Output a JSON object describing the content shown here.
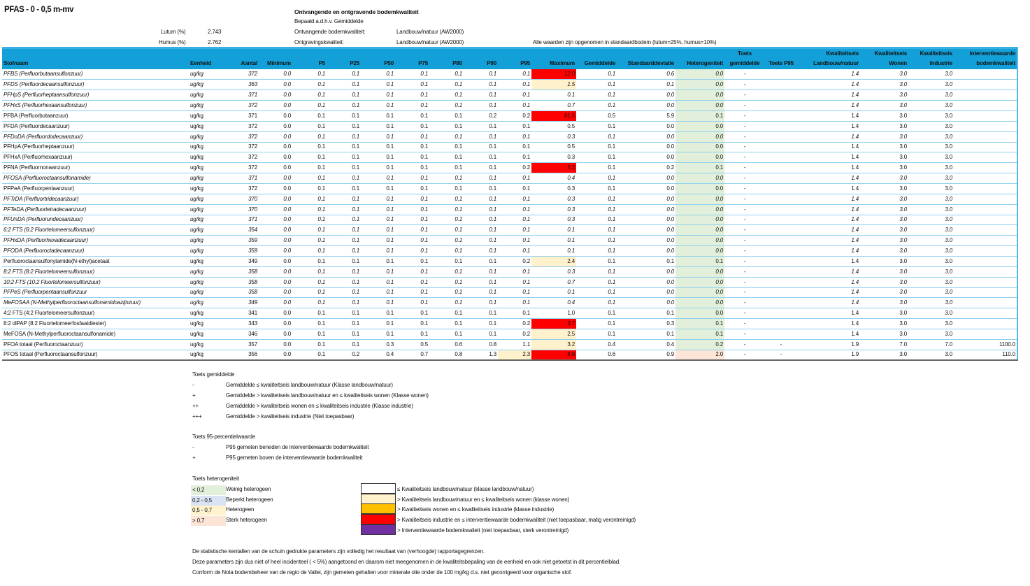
{
  "title": "PFAS - 0 - 0,5 m-mv",
  "info": {
    "lutum_label": "Lutum (%)",
    "lutum_value": "2.743",
    "humus_label": "Humus (%)",
    "humus_value": "2.762",
    "heading": "Ontvangende en ontgravende bodemkwaliteit",
    "basis": "Bepaald a.d.h.v. Gemiddelde",
    "ontvangend_label": "Ontvangende bodemkwaliteit:",
    "ontvangend_value": "Landbouw/natuur (AW2000)",
    "ontgraving_label": "Ontgravingskwaliteit:",
    "ontgraving_value": "Landbouw/natuur (AW2000)",
    "note": "Alle waarden zijn opgenomen in standaardbodem (lutum=25%, humus=10%)"
  },
  "table": {
    "headers": [
      [
        "",
        "Stofnaam"
      ],
      [
        "",
        "Eenheid"
      ],
      [
        "",
        "Aantal"
      ],
      [
        "",
        "Minimum"
      ],
      [
        "",
        "P5"
      ],
      [
        "",
        "P25"
      ],
      [
        "",
        "P50"
      ],
      [
        "",
        "P75"
      ],
      [
        "",
        "P80"
      ],
      [
        "",
        "P90"
      ],
      [
        "",
        "P95"
      ],
      [
        "",
        "Maximum"
      ],
      [
        "",
        "Gemiddelde"
      ],
      [
        "",
        "Standaarddeviatie"
      ],
      [
        "",
        "Heterogeniteit"
      ],
      [
        "Toets",
        "gemiddelde"
      ],
      [
        "",
        "Toets P95"
      ],
      [
        "Kwaliteitseis",
        "Landbouw/natuur"
      ],
      [
        "Kwaliteitseis",
        "Wonen"
      ],
      [
        "Kwaliteitseis",
        "Industrie"
      ],
      [
        "Interventiewaarde",
        "bodemkwaliteit"
      ]
    ],
    "rows": [
      {
        "italic": true,
        "cells": [
          "PFBS (Perfluorbutaansulfonzuur)",
          "ug/kg",
          "372",
          "0.0",
          "0.1",
          "0.1",
          "0.1",
          "0.1",
          "0.1",
          "0.1",
          "0.1",
          "12.0",
          "0.1",
          "0.6",
          "0.0",
          "-",
          "",
          "1.4",
          "3.0",
          "3.0",
          ""
        ],
        "max_color": "red"
      },
      {
        "italic": true,
        "cells": [
          "PFDS (Perfluordecaansulfonzuur)",
          "ug/kg",
          "363",
          "0.0",
          "0.1",
          "0.1",
          "0.1",
          "0.1",
          "0.1",
          "0.1",
          "0.1",
          "1.5",
          "0.1",
          "0.1",
          "0.0",
          "-",
          "",
          "1.4",
          "3.0",
          "3.0",
          ""
        ],
        "max_color": "light"
      },
      {
        "italic": true,
        "cells": [
          "PFHpS (Perfluorheptaansulfonzuur)",
          "ug/kg",
          "371",
          "0.0",
          "0.1",
          "0.1",
          "0.1",
          "0.1",
          "0.1",
          "0.1",
          "0.1",
          "0.1",
          "0.1",
          "0.0",
          "0.0",
          "-",
          "",
          "1.4",
          "3.0",
          "3.0",
          ""
        ]
      },
      {
        "italic": true,
        "cells": [
          "PFHxS (Perfluorhexaansulfonzuur)",
          "ug/kg",
          "372",
          "0.0",
          "0.1",
          "0.1",
          "0.1",
          "0.1",
          "0.1",
          "0.1",
          "0.1",
          "0.7",
          "0.1",
          "0.0",
          "0.0",
          "-",
          "",
          "1.4",
          "3.0",
          "3.0",
          ""
        ]
      },
      {
        "italic": false,
        "cells": [
          "PFBA (Perfluorbutaanzuur)",
          "ug/kg",
          "371",
          "0.0",
          "0.1",
          "0.1",
          "0.1",
          "0.1",
          "0.1",
          "0.2",
          "0.2",
          "81.5",
          "0.5",
          "5.9",
          "0.1",
          "-",
          "",
          "1.4",
          "3.0",
          "3.0",
          ""
        ],
        "max_color": "red"
      },
      {
        "italic": false,
        "cells": [
          "PFDA (Perfluordecaanzuur)",
          "ug/kg",
          "372",
          "0.0",
          "0.1",
          "0.1",
          "0.1",
          "0.1",
          "0.1",
          "0.1",
          "0.1",
          "0.5",
          "0.1",
          "0.0",
          "0.0",
          "-",
          "",
          "1.4",
          "3.0",
          "3.0",
          ""
        ]
      },
      {
        "italic": true,
        "cells": [
          "PFDoDA (Perfluordodecaanzuur)",
          "ug/kg",
          "372",
          "0.0",
          "0.1",
          "0.1",
          "0.1",
          "0.1",
          "0.1",
          "0.1",
          "0.1",
          "0.3",
          "0.1",
          "0.0",
          "0.0",
          "-",
          "",
          "1.4",
          "3.0",
          "3.0",
          ""
        ]
      },
      {
        "italic": false,
        "cells": [
          "PFHpA (Perfluorheptaanzuur)",
          "ug/kg",
          "372",
          "0.0",
          "0.1",
          "0.1",
          "0.1",
          "0.1",
          "0.1",
          "0.1",
          "0.1",
          "0.5",
          "0.1",
          "0.0",
          "0.0",
          "-",
          "",
          "1.4",
          "3.0",
          "3.0",
          ""
        ]
      },
      {
        "italic": false,
        "cells": [
          "PFHxA (Perfluorhexaanzuur)",
          "ug/kg",
          "372",
          "0.0",
          "0.1",
          "0.1",
          "0.1",
          "0.1",
          "0.1",
          "0.1",
          "0.1",
          "0.3",
          "0.1",
          "0.0",
          "0.0",
          "-",
          "",
          "1.4",
          "3.0",
          "3.0",
          ""
        ]
      },
      {
        "italic": false,
        "cells": [
          "PFNA (Perfluornonaanzuur)",
          "ug/kg",
          "372",
          "0.0",
          "0.1",
          "0.1",
          "0.1",
          "0.1",
          "0.1",
          "0.1",
          "0.2",
          "3.2",
          "0.1",
          "0.2",
          "0.1",
          "-",
          "",
          "1.4",
          "3.0",
          "3.0",
          ""
        ],
        "max_color": "red"
      },
      {
        "italic": true,
        "cells": [
          "PFOSA (Perfluoroctaansulfonamide)",
          "ug/kg",
          "371",
          "0.0",
          "0.1",
          "0.1",
          "0.1",
          "0.1",
          "0.1",
          "0.1",
          "0.1",
          "0.4",
          "0.1",
          "0.0",
          "0.0",
          "-",
          "",
          "1.4",
          "3.0",
          "3.0",
          ""
        ]
      },
      {
        "italic": false,
        "cells": [
          "PFPeA (Perfluorpentaanzuur)",
          "ug/kg",
          "372",
          "0.0",
          "0.1",
          "0.1",
          "0.1",
          "0.1",
          "0.1",
          "0.1",
          "0.1",
          "0.3",
          "0.1",
          "0.0",
          "0.0",
          "-",
          "",
          "1.4",
          "3.0",
          "3.0",
          ""
        ]
      },
      {
        "italic": true,
        "cells": [
          "PFTrDA (Perfluortridecaanzuur)",
          "ug/kg",
          "370",
          "0.0",
          "0.1",
          "0.1",
          "0.1",
          "0.1",
          "0.1",
          "0.1",
          "0.1",
          "0.3",
          "0.1",
          "0.0",
          "0.0",
          "-",
          "",
          "1.4",
          "3.0",
          "3.0",
          ""
        ]
      },
      {
        "italic": true,
        "cells": [
          "PFTeDA (Perfluortetradecaanzuur)",
          "ug/kg",
          "370",
          "0.0",
          "0.1",
          "0.1",
          "0.1",
          "0.1",
          "0.1",
          "0.1",
          "0.1",
          "0.3",
          "0.1",
          "0.0",
          "0.0",
          "-",
          "",
          "1.4",
          "3.0",
          "3.0",
          ""
        ]
      },
      {
        "italic": true,
        "cells": [
          "PFUnDA (Perfluorundecaanzuur)",
          "ug/kg",
          "371",
          "0.0",
          "0.1",
          "0.1",
          "0.1",
          "0.1",
          "0.1",
          "0.1",
          "0.1",
          "0.3",
          "0.1",
          "0.0",
          "0.0",
          "-",
          "",
          "1.4",
          "3.0",
          "3.0",
          ""
        ]
      },
      {
        "italic": true,
        "cells": [
          "6:2 FTS (6:2 Fluortelomeersulfonzuur)",
          "ug/kg",
          "354",
          "0.0",
          "0.1",
          "0.1",
          "0.1",
          "0.1",
          "0.1",
          "0.1",
          "0.1",
          "0.1",
          "0.1",
          "0.0",
          "0.0",
          "-",
          "",
          "1.4",
          "3.0",
          "3.0",
          ""
        ]
      },
      {
        "italic": true,
        "cells": [
          "PFHxDA (Perfluorhexadecaanzuur)",
          "ug/kg",
          "359",
          "0.0",
          "0.1",
          "0.1",
          "0.1",
          "0.1",
          "0.1",
          "0.1",
          "0.1",
          "0.1",
          "0.1",
          "0.0",
          "0.0",
          "-",
          "",
          "1.4",
          "3.0",
          "3.0",
          ""
        ]
      },
      {
        "italic": true,
        "cells": [
          "PFODA (Perfluoroctadecaanzuur)",
          "ug/kg",
          "359",
          "0.0",
          "0.1",
          "0.1",
          "0.1",
          "0.1",
          "0.1",
          "0.1",
          "0.1",
          "0.1",
          "0.1",
          "0.0",
          "0.0",
          "-",
          "",
          "1.4",
          "3.0",
          "3.0",
          ""
        ]
      },
      {
        "italic": false,
        "cells": [
          "Perfluoroctaansulfonylamide(N-ethyl)acetaat",
          "ug/kg",
          "349",
          "0.0",
          "0.1",
          "0.1",
          "0.1",
          "0.1",
          "0.1",
          "0.1",
          "0.2",
          "2.4",
          "0.1",
          "0.1",
          "0.1",
          "-",
          "",
          "1.4",
          "3.0",
          "3.0",
          ""
        ],
        "max_color": "light"
      },
      {
        "italic": true,
        "cells": [
          "8:2 FTS (8:2 Fluortelomeersulfonzuur)",
          "ug/kg",
          "358",
          "0.0",
          "0.1",
          "0.1",
          "0.1",
          "0.1",
          "0.1",
          "0.1",
          "0.1",
          "0.3",
          "0.1",
          "0.0",
          "0.0",
          "-",
          "",
          "1.4",
          "3.0",
          "3.0",
          ""
        ]
      },
      {
        "italic": true,
        "cells": [
          "10:2 FTS (10:2 Fluortelomeersulfonzuur)",
          "ug/kg",
          "358",
          "0.0",
          "0.1",
          "0.1",
          "0.1",
          "0.1",
          "0.1",
          "0.1",
          "0.1",
          "0.7",
          "0.1",
          "0.0",
          "0.0",
          "-",
          "",
          "1.4",
          "3.0",
          "3.0",
          ""
        ]
      },
      {
        "italic": true,
        "cells": [
          "PFPeS (Perfluorpentaansulfonzuur",
          "ug/kg",
          "358",
          "0.0",
          "0.1",
          "0.1",
          "0.1",
          "0.1",
          "0.1",
          "0.1",
          "0.1",
          "0.1",
          "0.1",
          "0.0",
          "0.0",
          "-",
          "",
          "1.4",
          "3.0",
          "3.0",
          ""
        ]
      },
      {
        "italic": true,
        "cells": [
          "MeFOSAA (N-Methylperfluoroctaansulfonamidoazijnzuur)",
          "ug/kg",
          "349",
          "0.0",
          "0.1",
          "0.1",
          "0.1",
          "0.1",
          "0.1",
          "0.1",
          "0.1",
          "0.4",
          "0.1",
          "0.0",
          "0.0",
          "-",
          "",
          "1.4",
          "3.0",
          "3.0",
          ""
        ]
      },
      {
        "italic": false,
        "cells": [
          "4:2 FTS (4:2 Fluortelomeersulfonzuur)",
          "ug/kg",
          "341",
          "0.0",
          "0.1",
          "0.1",
          "0.1",
          "0.1",
          "0.1",
          "0.1",
          "0.1",
          "1.0",
          "0.1",
          "0.1",
          "0.0",
          "-",
          "",
          "1.4",
          "3.0",
          "3.0",
          ""
        ]
      },
      {
        "italic": false,
        "cells": [
          "8:2 diPAP (8:2 Fluortelomeerfosfaatdiester)",
          "ug/kg",
          "343",
          "0.0",
          "0.1",
          "0.1",
          "0.1",
          "0.1",
          "0.1",
          "0.1",
          "0.2",
          "3.7",
          "0.1",
          "0.3",
          "0.1",
          "-",
          "",
          "1.4",
          "3.0",
          "3.0",
          ""
        ],
        "max_color": "red"
      },
      {
        "italic": false,
        "cells": [
          "MeFOSA  (N-Methylperfluoroctaansulfonamide)",
          "ug/kg",
          "346",
          "0.0",
          "0.1",
          "0.1",
          "0.1",
          "0.1",
          "0.1",
          "0.1",
          "0.2",
          "2.5",
          "0.1",
          "0.1",
          "0.1",
          "-",
          "",
          "1.4",
          "3.0",
          "3.0",
          ""
        ],
        "max_color": "light"
      },
      {
        "italic": false,
        "cells": [
          "PFOA totaal (Perfluoroctaanzuur)",
          "ug/kg",
          "357",
          "0.0",
          "0.1",
          "0.1",
          "0.3",
          "0.5",
          "0.6",
          "0.8",
          "1.1",
          "3.2",
          "0.4",
          "0.4",
          "0.2",
          "-",
          "-",
          "1.9",
          "7.0",
          "7.0",
          "1100.0"
        ],
        "max_color": "light"
      },
      {
        "italic": false,
        "cells": [
          "PFOS totaal (Perfluoroctaansulfonzuur)",
          "ug/kg",
          "356",
          "0.0",
          "0.1",
          "0.2",
          "0.4",
          "0.7",
          "0.8",
          "1.3",
          "2.3",
          "8.9",
          "0.6",
          "0.9",
          "2.0",
          "-",
          "-",
          "1.9",
          "3.0",
          "3.0",
          "110.0"
        ],
        "max_color": "red",
        "p95_color": "light",
        "het_color": "pink"
      }
    ]
  },
  "legend": {
    "toets_gem": {
      "title": "Toets gemiddelde",
      "items": [
        {
          "sym": "-",
          "text": "Gemiddelde ≤ kwaliteitseis landbouw/natuur (Klasse landbouw/natuur)"
        },
        {
          "sym": "+",
          "text": "Gemiddelde > kwaliteitseis landbouw/natuur en ≤ kwaliteitseis wonen (Klasse wonen)"
        },
        {
          "sym": "++",
          "text": "Gemiddelde > kwaliteitseis wonen en ≤ kwaliteitseis industrie (Klasse industrie)"
        },
        {
          "sym": "+++",
          "text": "Gemiddelde > kwaliteitseis industrie (Niet toepasbaar)"
        }
      ]
    },
    "toets_p95": {
      "title": "Toets 95-percentielwaarde",
      "items": [
        {
          "sym": "-",
          "text": "P95 gemeten beneden de interventiewaarde bodemkwaliteit"
        },
        {
          "sym": "+",
          "text": "P95 gemeten boven de interventiewaarde bodemkwaliteit"
        }
      ]
    },
    "heterogeniteit": {
      "title": "Toets heterogeniteit",
      "items": [
        {
          "range": "< 0,2",
          "text": "Weinig heterogeen",
          "color": "#e2efda"
        },
        {
          "range": "0,2 - 0,5",
          "text": "Beperkt heterogeen",
          "color": "#dae3f3"
        },
        {
          "range": "0,5 - 0,7",
          "text": "Heterogeen",
          "color": "#fff2cc"
        },
        {
          "range": "> 0,7",
          "text": "Sterk heterogeen",
          "color": "#fce4d6"
        }
      ]
    },
    "klassen": [
      {
        "color": "#ffffff",
        "text": "≤ Kwaliteitseis landbouw/natuur (klasse landbouw/natuur)"
      },
      {
        "color": "#fff1cc",
        "text": "> Kwaliteitseis landbouw/natuur en ≤ kwaliteitseis wonen (klasse wonen)"
      },
      {
        "color": "#ffc000",
        "text": "> Kwaliteitseis wonen en ≤ kwaliteitseis industrie (klasse industrie)"
      },
      {
        "color": "#ff0000",
        "text": "> Kwaliteitseis industrie en ≤ interventiewaarde bodemkwaliteit (niet toepasbaar, matig verontreinigd)"
      },
      {
        "color": "#7030a0",
        "text": "> Interventiewaarde bodemkwalieit (niet toepasbaar, sterk verontreinigd)"
      }
    ]
  },
  "footnotes": [
    "De statistische kentallen van de schuin gedrukte parameters zijn volledig het resultaat van (verhoogde) rapportagegrenzen.",
    "Deze parameters zijn dus niet of heel incidenteel ( < 5%) aangetoond en daarom niet meegenomen in de kwaliteitsbepaling van de eenheid en ook niet getoetst in dit percentielblad.",
    "Conform de Nota bodembeheer van de regio de Vallei, zijn gemeten gehalten voor minerale olie onder de 100 mg/kg d.s. niet gecorrigeerd voor organische stof."
  ],
  "colors": {
    "header": "#13a0d8",
    "red": "#ff0000",
    "light": "#fff1cc",
    "het_green": "#e2efda",
    "het_pink": "#fce4d6"
  }
}
